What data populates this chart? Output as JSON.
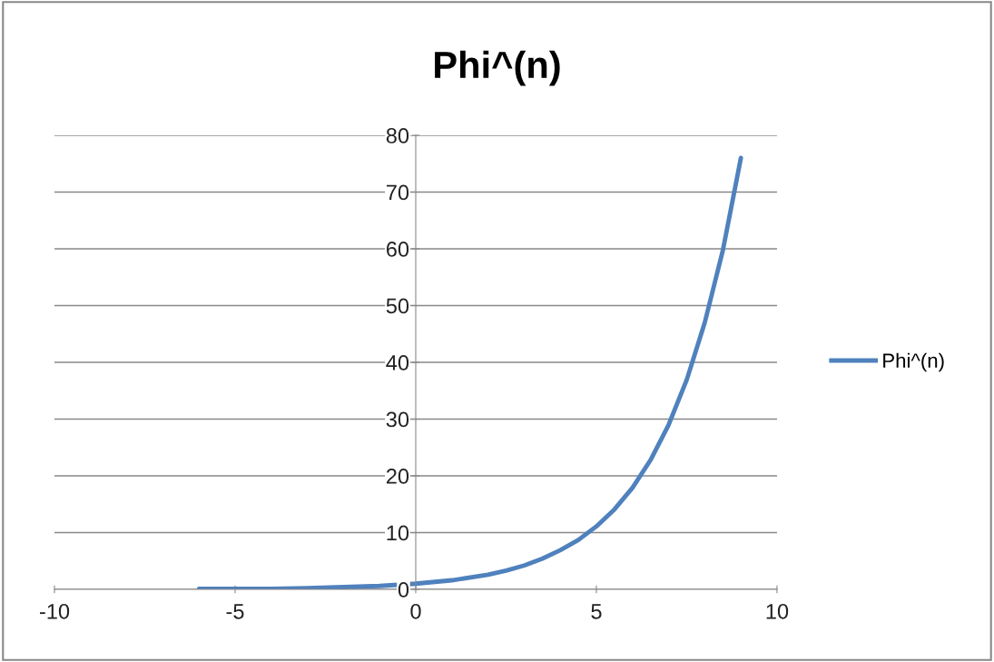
{
  "chart_data": {
    "type": "line",
    "title": "Phi^(n)",
    "x": [
      -6,
      -5,
      -4,
      -3,
      -2,
      -1,
      0,
      1,
      2,
      2.5,
      3,
      3.5,
      4,
      4.5,
      5,
      5.5,
      6,
      6.5,
      7,
      7.5,
      8,
      8.5,
      9
    ],
    "series": [
      {
        "name": "Phi^(n)",
        "color": "#4f81bd",
        "values": [
          0.1,
          0.1,
          0.1,
          0.2,
          0.4,
          0.6,
          1,
          1.6,
          2.6,
          3.3,
          4.2,
          5.4,
          6.9,
          8.7,
          11.1,
          14.1,
          17.9,
          22.8,
          29.0,
          36.9,
          47.0,
          59.7,
          76.0
        ]
      }
    ],
    "xlim": [
      -10,
      10
    ],
    "xticks": [
      -10,
      -5,
      0,
      5,
      10
    ],
    "ylim": [
      0,
      80
    ],
    "yticks": [
      0,
      10,
      20,
      30,
      40,
      50,
      60,
      70,
      80
    ],
    "grid": "y",
    "legend": "right",
    "marker": "none",
    "line_style": "solid"
  }
}
